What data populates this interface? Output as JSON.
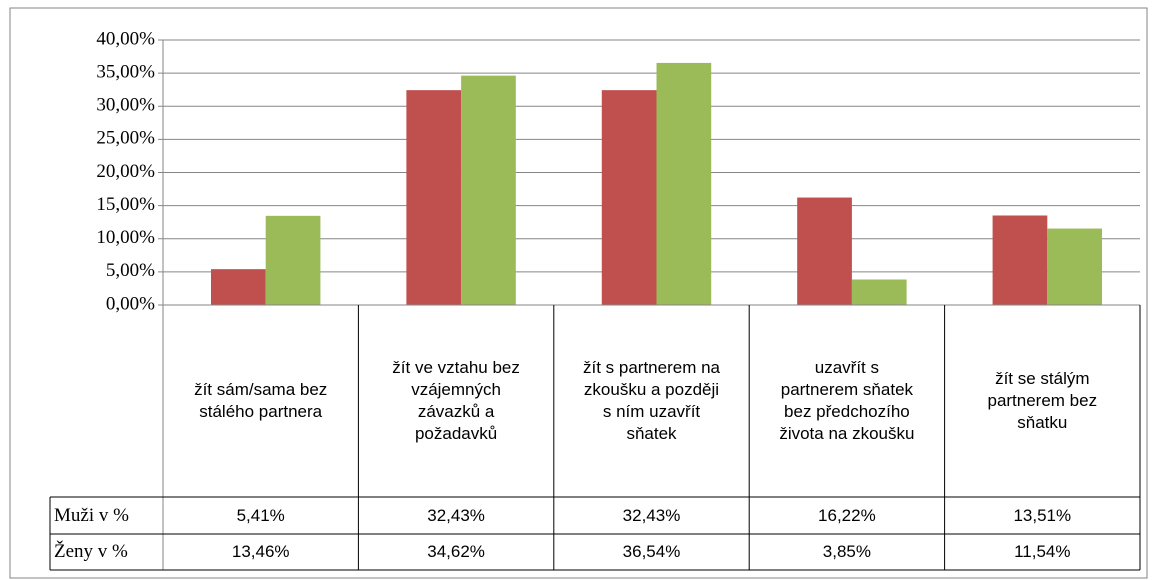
{
  "chart_data": {
    "type": "bar",
    "categories": [
      "žít sám/sama bez stálého partnera",
      "žít ve vztahu bez vzájemných závazků a požadavků",
      "žít s partnerem na zkoušku a později s ním uzavřít sňatek",
      "uzavřít s partnerem sňatek bez předchozího života na zkoušku",
      "žít se stálým partnerem bez sňatku"
    ],
    "series": [
      {
        "name": "Muži v %",
        "color": "#c0504d",
        "values": [
          5.41,
          32.43,
          32.43,
          16.22,
          13.51
        ],
        "value_labels": [
          "5,41%",
          "32,43%",
          "32,43%",
          "16,22%",
          "13,51%"
        ]
      },
      {
        "name": "Ženy v %",
        "color": "#9bbb59",
        "values": [
          13.46,
          34.62,
          36.54,
          3.85,
          11.54
        ],
        "value_labels": [
          "13,46%",
          "34,62%",
          "36,54%",
          "3,85%",
          "11,54%"
        ]
      }
    ],
    "ylim": [
      0,
      40
    ],
    "yticks": [
      {
        "value": 0,
        "label": "0,00%"
      },
      {
        "value": 5,
        "label": "5,00%"
      },
      {
        "value": 10,
        "label": "10,00%"
      },
      {
        "value": 15,
        "label": "15,00%"
      },
      {
        "value": 20,
        "label": "20,00%"
      },
      {
        "value": 25,
        "label": "25,00%"
      },
      {
        "value": 30,
        "label": "30,00%"
      },
      {
        "value": 35,
        "label": "35,00%"
      },
      {
        "value": 40,
        "label": "40,00%"
      }
    ],
    "grid": true
  }
}
